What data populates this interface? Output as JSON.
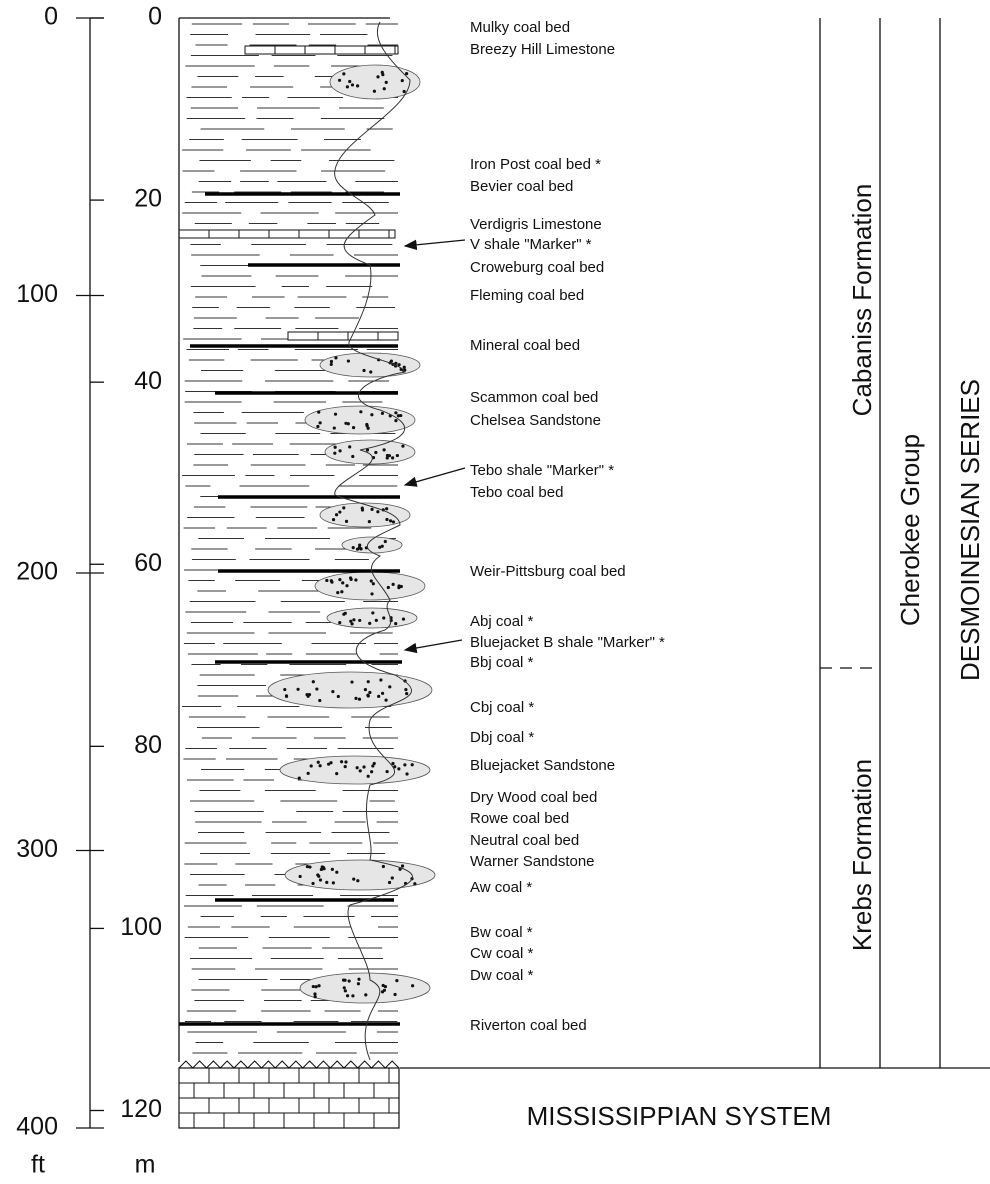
{
  "scales": {
    "feet": {
      "unit": "ft",
      "ticks": [
        0,
        100,
        200,
        300,
        400
      ]
    },
    "meters": {
      "unit": "m",
      "ticks": [
        0,
        20,
        40,
        60,
        80,
        100,
        120
      ]
    }
  },
  "beds": [
    "Mulky coal bed",
    "Breezy Hill Limestone",
    "Iron Post coal bed *",
    "Bevier coal bed",
    "Verdigris Limestone",
    "V shale \"Marker\" *",
    "Croweburg coal bed",
    "Fleming coal bed",
    "Mineral coal bed",
    "Scammon coal bed",
    "Chelsea Sandstone",
    "Tebo shale \"Marker\" *",
    "Tebo coal bed",
    "Weir-Pittsburg coal bed",
    "Abj coal *",
    "Bluejacket B shale \"Marker\" *",
    "Bbj coal *",
    "Cbj coal *",
    "Dbj coal *",
    "Bluejacket Sandstone",
    "Dry Wood coal bed",
    "Rowe coal bed",
    "Neutral coal bed",
    "Warner Sandstone",
    "Aw coal *",
    "Bw coal *",
    "Cw coal *",
    "Dw coal *",
    "Riverton coal bed"
  ],
  "units": {
    "formations": [
      "Cabaniss Formation",
      "Krebs Formation"
    ],
    "group": "Cherokee Group",
    "series": "DESMOINESIAN SERIES"
  },
  "base": "MISSISSIPPIAN SYSTEM"
}
